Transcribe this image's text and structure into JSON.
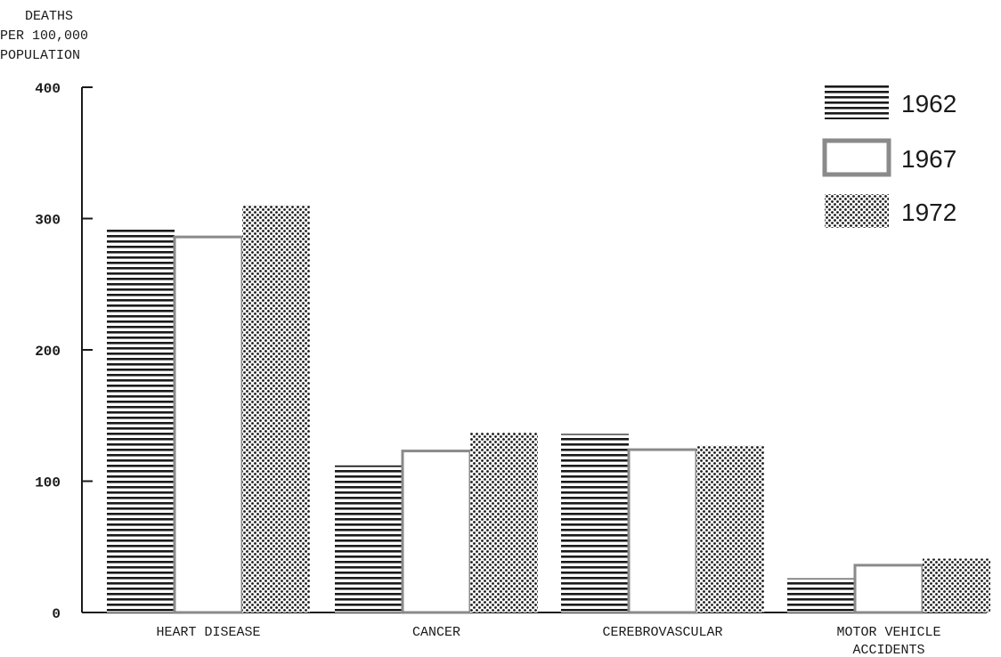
{
  "chart_data": {
    "type": "bar",
    "ylabel": "DEATHS PER 100,000 POPULATION",
    "ylabel_lines": [
      "DEATHS",
      "PER 100,000",
      "POPULATION"
    ],
    "ylim": [
      0,
      400
    ],
    "yticks": [
      "0",
      "100",
      "200",
      "300",
      "400"
    ],
    "ytick_values": [
      0,
      100,
      200,
      300,
      400
    ],
    "grid": false,
    "legend_placement": "top-right",
    "categories": [
      "HEART DISEASE",
      "CANCER",
      "CEREBROVASCULAR",
      "MOTOR VEHICLE ACCIDENTS"
    ],
    "category_lines": [
      [
        "HEART DISEASE"
      ],
      [
        "CANCER"
      ],
      [
        "CEREBROVASCULAR"
      ],
      [
        "MOTOR VEHICLE",
        "ACCIDENTS"
      ]
    ],
    "series": [
      {
        "name": "1962",
        "pattern": "horizontal-lines",
        "values": [
          293,
          112,
          136,
          26
        ]
      },
      {
        "name": "1967",
        "pattern": "outlined-empty",
        "values": [
          286,
          123,
          124,
          36
        ]
      },
      {
        "name": "1972",
        "pattern": "dots",
        "values": [
          310,
          137,
          127,
          41
        ]
      }
    ],
    "colors": {
      "ink": "#1a1a1a",
      "outline": "#8a8a8a"
    }
  }
}
